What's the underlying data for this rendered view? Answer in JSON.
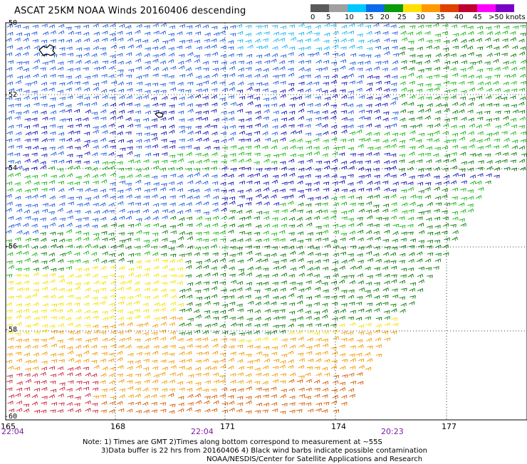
{
  "title": "ASCAT 25KM NOAA Winds 20160406 descending",
  "legend": {
    "labels": [
      "0",
      "5",
      "10",
      "15",
      "20",
      "25",
      "30",
      "35",
      "40",
      "45",
      ">50 knots"
    ],
    "colors": [
      "#5a5a5a",
      "#a0a0a0",
      "#00c8ff",
      "#0a6ce8",
      "#0a9a0a",
      "#ffe000",
      "#ff9a00",
      "#e04000",
      "#c00030",
      "#ff00ff",
      "#7a00c8"
    ]
  },
  "axes": {
    "latitudes": [
      "-50",
      "-52",
      "-54",
      "-56",
      "-58",
      "-60"
    ],
    "longitudes": [
      "165",
      "168",
      "171",
      "174",
      "177"
    ],
    "times": [
      "22:04",
      "22:04",
      "20:23"
    ]
  },
  "notes": {
    "line1": "Note: 1) Times are GMT 2)Times along bottom correspond to measurement at ~55S",
    "line2": "3)Data buffer is 22 hrs from 20160406 4) Black wind barbs indicate possible contamination",
    "line3": "NOAA/NESDIS/Center for Satellite Applications and Research"
  },
  "wind_field": {
    "swath_description_colors": {
      "light_blue": "#18b4f0",
      "blue": "#1e5adc",
      "dark_blue": "#1414b4",
      "green": "#14b414",
      "dark_green": "#0a7a0a",
      "yellow": "#f5e000",
      "orange": "#f09a00",
      "dark_orange": "#d25a00",
      "red": "#c81e3c"
    }
  }
}
